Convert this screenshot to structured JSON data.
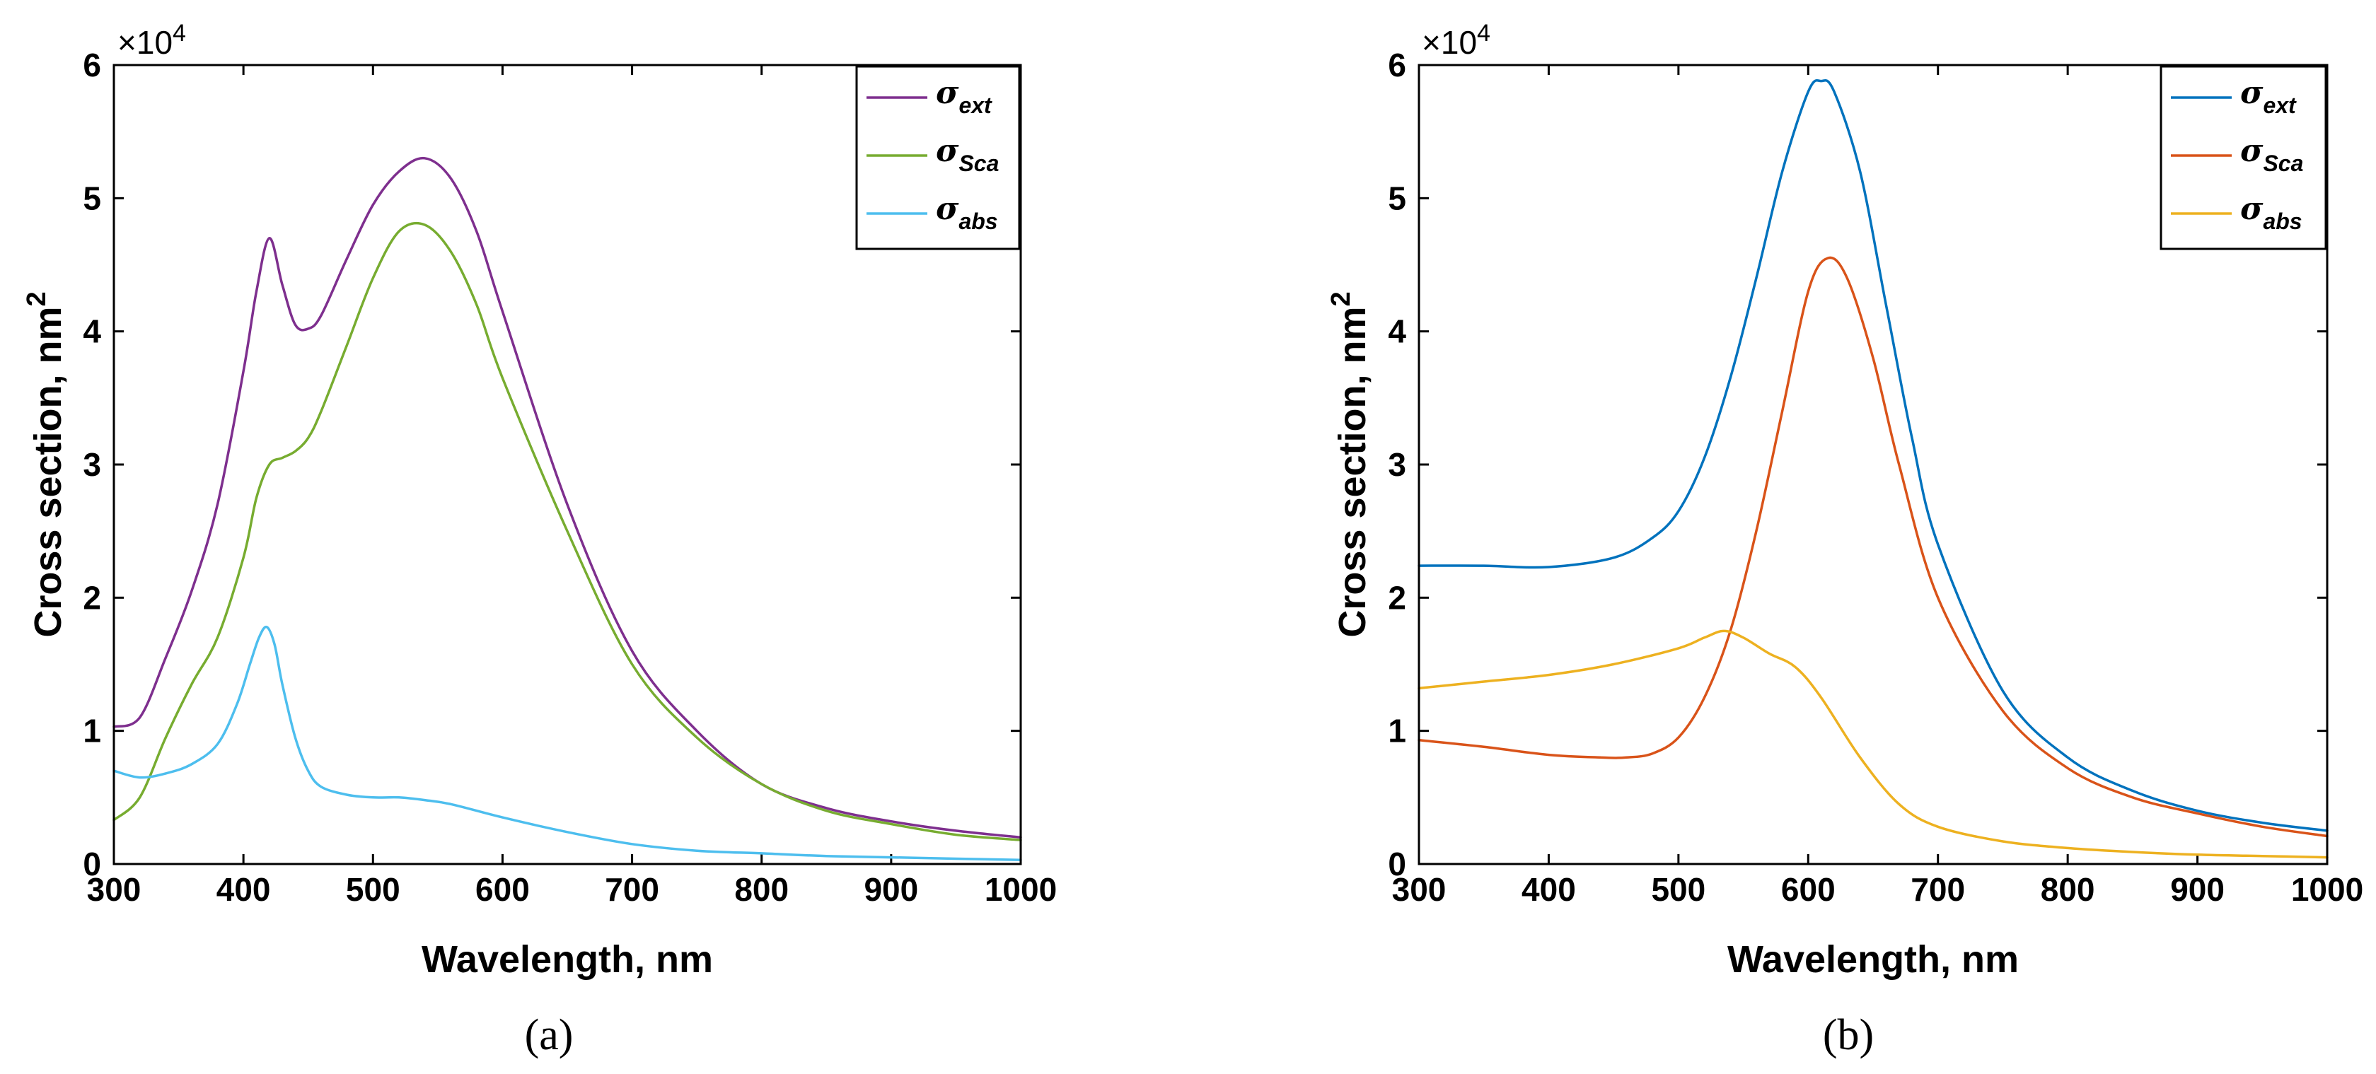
{
  "chart_data": [
    {
      "type": "line",
      "caption": "(a)",
      "xlabel": "Wavelength, nm",
      "ylabel": "Cross section, nm",
      "ylabel_sup": "2",
      "y_multiplier": "×10",
      "y_multiplier_exp": "4",
      "xlim": [
        300,
        1000
      ],
      "ylim": [
        0,
        6
      ],
      "xticks": [
        "300",
        "400",
        "500",
        "600",
        "700",
        "800",
        "900",
        "1000"
      ],
      "yticks": [
        "0",
        "1",
        "2",
        "3",
        "4",
        "5",
        "6"
      ],
      "legend_position": "top-right",
      "series": [
        {
          "name": "σ",
          "sub": "ext",
          "color": "#7e2f8e",
          "x": [
            300,
            320,
            340,
            360,
            380,
            400,
            410,
            420,
            430,
            440,
            450,
            460,
            480,
            500,
            520,
            540,
            560,
            580,
            600,
            650,
            700,
            750,
            800,
            850,
            900,
            950,
            1000
          ],
          "y": [
            1.03,
            1.1,
            1.55,
            2.05,
            2.7,
            3.7,
            4.3,
            4.7,
            4.35,
            4.05,
            4.02,
            4.12,
            4.55,
            4.95,
            5.2,
            5.3,
            5.15,
            4.75,
            4.15,
            2.7,
            1.6,
            1.0,
            0.6,
            0.42,
            0.32,
            0.25,
            0.2
          ]
        },
        {
          "name": "σ",
          "sub": "Sca",
          "color": "#77ac30",
          "x": [
            300,
            320,
            340,
            360,
            380,
            400,
            410,
            420,
            430,
            440,
            450,
            460,
            480,
            500,
            520,
            540,
            560,
            580,
            600,
            650,
            700,
            750,
            800,
            850,
            900,
            950,
            1000
          ],
          "y": [
            0.33,
            0.5,
            0.95,
            1.35,
            1.7,
            2.3,
            2.75,
            3.0,
            3.05,
            3.1,
            3.2,
            3.4,
            3.9,
            4.4,
            4.75,
            4.8,
            4.6,
            4.2,
            3.65,
            2.5,
            1.5,
            0.95,
            0.6,
            0.4,
            0.3,
            0.22,
            0.18
          ]
        },
        {
          "name": "σ",
          "sub": "abs",
          "color": "#4dbeee",
          "x": [
            300,
            320,
            340,
            360,
            380,
            395,
            405,
            412,
            418,
            424,
            430,
            440,
            450,
            460,
            480,
            500,
            520,
            540,
            560,
            600,
            650,
            700,
            750,
            800,
            850,
            900,
            950,
            1000
          ],
          "y": [
            0.7,
            0.65,
            0.68,
            0.75,
            0.9,
            1.2,
            1.5,
            1.7,
            1.78,
            1.65,
            1.35,
            0.95,
            0.7,
            0.58,
            0.52,
            0.5,
            0.5,
            0.48,
            0.45,
            0.35,
            0.24,
            0.15,
            0.1,
            0.08,
            0.06,
            0.05,
            0.04,
            0.03
          ]
        }
      ]
    },
    {
      "type": "line",
      "caption": "(b)",
      "xlabel": "Wavelength, nm",
      "ylabel": "Cross section, nm",
      "ylabel_sup": "2",
      "y_multiplier": "×10",
      "y_multiplier_exp": "4",
      "xlim": [
        300,
        1000
      ],
      "ylim": [
        0,
        6
      ],
      "xticks": [
        "300",
        "400",
        "500",
        "600",
        "700",
        "800",
        "900",
        "1000"
      ],
      "yticks": [
        "0",
        "1",
        "2",
        "3",
        "4",
        "5",
        "6"
      ],
      "legend_position": "top-right",
      "series": [
        {
          "name": "σ",
          "sub": "ext",
          "color": "#0072bd",
          "x": [
            300,
            350,
            400,
            450,
            480,
            500,
            520,
            540,
            560,
            580,
            600,
            610,
            620,
            640,
            660,
            680,
            700,
            750,
            800,
            850,
            900,
            950,
            1000
          ],
          "y": [
            2.24,
            2.24,
            2.23,
            2.3,
            2.45,
            2.65,
            3.05,
            3.65,
            4.4,
            5.2,
            5.8,
            5.88,
            5.8,
            5.2,
            4.2,
            3.2,
            2.4,
            1.3,
            0.8,
            0.55,
            0.4,
            0.31,
            0.25
          ]
        },
        {
          "name": "σ",
          "sub": "Sca",
          "color": "#d95319",
          "x": [
            300,
            350,
            400,
            440,
            460,
            480,
            500,
            520,
            540,
            560,
            580,
            600,
            615,
            630,
            650,
            670,
            700,
            750,
            800,
            850,
            900,
            950,
            1000
          ],
          "y": [
            0.93,
            0.88,
            0.82,
            0.8,
            0.8,
            0.83,
            0.95,
            1.25,
            1.75,
            2.5,
            3.4,
            4.3,
            4.55,
            4.4,
            3.8,
            3.0,
            2.0,
            1.15,
            0.72,
            0.5,
            0.38,
            0.28,
            0.21
          ]
        },
        {
          "name": "σ",
          "sub": "abs",
          "color": "#edb120",
          "x": [
            300,
            350,
            400,
            450,
            500,
            520,
            535,
            550,
            570,
            590,
            610,
            640,
            670,
            700,
            750,
            800,
            850,
            900,
            950,
            1000
          ],
          "y": [
            1.32,
            1.37,
            1.42,
            1.5,
            1.62,
            1.7,
            1.75,
            1.7,
            1.58,
            1.48,
            1.25,
            0.8,
            0.45,
            0.28,
            0.17,
            0.12,
            0.09,
            0.07,
            0.06,
            0.05
          ]
        }
      ]
    }
  ]
}
